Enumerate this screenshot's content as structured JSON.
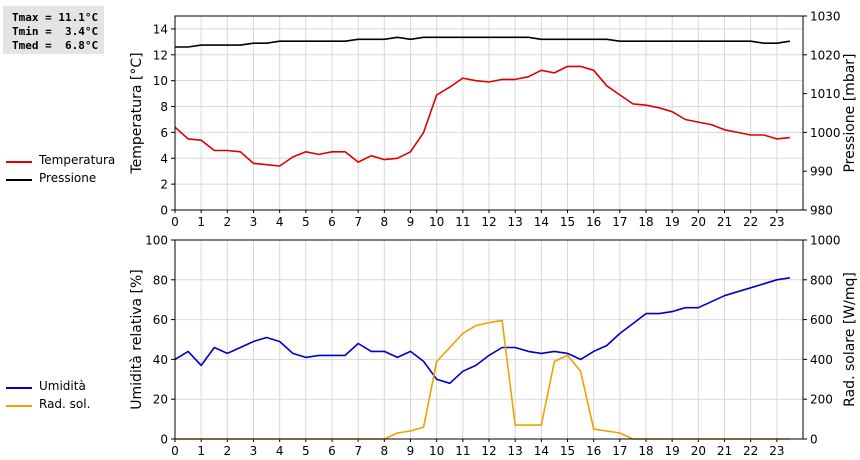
{
  "stats": {
    "tmax": "Tmax = 11.1°C",
    "tmin": "Tmin =  3.4°C",
    "tmed": "Tmed =  6.8°C"
  },
  "colors": {
    "temperature": "#dd0000",
    "pressure": "#000000",
    "humidity": "#0000cc",
    "solar": "#f0a000",
    "grid": "#d8d8d8"
  },
  "chart_data": [
    {
      "type": "line",
      "xlim": [
        0,
        24
      ],
      "x_ticks": [
        "0",
        "1",
        "2",
        "3",
        "4",
        "5",
        "6",
        "7",
        "8",
        "9",
        "10",
        "11",
        "12",
        "13",
        "14",
        "15",
        "16",
        "17",
        "18",
        "19",
        "20",
        "21",
        "22",
        "23"
      ],
      "grid": true,
      "legend_position": "left",
      "left_axis": {
        "label": "Temperatura [°C]",
        "ylim": [
          0,
          15
        ],
        "ticks": [
          0,
          2,
          4,
          6,
          8,
          10,
          12,
          14
        ]
      },
      "right_axis": {
        "label": "Pressione [mbar]",
        "ylim": [
          980,
          1030
        ],
        "ticks": [
          980,
          990,
          1000,
          1010,
          1020,
          1030
        ]
      },
      "series": [
        {
          "name": "Temperatura",
          "axis": "left",
          "color": "#dd0000",
          "points": [
            [
              0,
              6.4
            ],
            [
              0.5,
              5.5
            ],
            [
              1,
              5.4
            ],
            [
              1.5,
              4.6
            ],
            [
              2,
              4.6
            ],
            [
              2.5,
              4.5
            ],
            [
              3,
              3.6
            ],
            [
              3.5,
              3.5
            ],
            [
              4,
              3.4
            ],
            [
              4.5,
              4.1
            ],
            [
              5,
              4.5
            ],
            [
              5.5,
              4.3
            ],
            [
              6,
              4.5
            ],
            [
              6.5,
              4.5
            ],
            [
              7,
              3.7
            ],
            [
              7.5,
              4.2
            ],
            [
              8,
              3.9
            ],
            [
              8.5,
              4.0
            ],
            [
              9,
              4.5
            ],
            [
              9.5,
              6.0
            ],
            [
              10,
              8.9
            ],
            [
              10.5,
              9.5
            ],
            [
              11,
              10.2
            ],
            [
              11.5,
              10.0
            ],
            [
              12,
              9.9
            ],
            [
              12.5,
              10.1
            ],
            [
              13,
              10.1
            ],
            [
              13.5,
              10.3
            ],
            [
              14,
              10.8
            ],
            [
              14.5,
              10.6
            ],
            [
              15,
              11.1
            ],
            [
              15.5,
              11.1
            ],
            [
              16,
              10.8
            ],
            [
              16.5,
              9.6
            ],
            [
              17,
              8.9
            ],
            [
              17.5,
              8.2
            ],
            [
              18,
              8.1
            ],
            [
              18.5,
              7.9
            ],
            [
              19,
              7.6
            ],
            [
              19.5,
              7.0
            ],
            [
              20,
              6.8
            ],
            [
              20.5,
              6.6
            ],
            [
              21,
              6.2
            ],
            [
              21.5,
              6.0
            ],
            [
              22,
              5.8
            ],
            [
              22.5,
              5.8
            ],
            [
              23,
              5.5
            ],
            [
              23.5,
              5.6
            ]
          ]
        },
        {
          "name": "Pressione",
          "axis": "right",
          "color": "#000000",
          "points": [
            [
              0,
              1022
            ],
            [
              0.5,
              1022
            ],
            [
              1,
              1022.5
            ],
            [
              1.5,
              1022.5
            ],
            [
              2,
              1022.5
            ],
            [
              2.5,
              1022.5
            ],
            [
              3,
              1023
            ],
            [
              3.5,
              1023
            ],
            [
              4,
              1023.5
            ],
            [
              4.5,
              1023.5
            ],
            [
              5,
              1023.5
            ],
            [
              5.5,
              1023.5
            ],
            [
              6,
              1023.5
            ],
            [
              6.5,
              1023.5
            ],
            [
              7,
              1024
            ],
            [
              7.5,
              1024
            ],
            [
              8,
              1024
            ],
            [
              8.5,
              1024.5
            ],
            [
              9,
              1024
            ],
            [
              9.5,
              1024.5
            ],
            [
              10,
              1024.5
            ],
            [
              10.5,
              1024.5
            ],
            [
              11,
              1024.5
            ],
            [
              11.5,
              1024.5
            ],
            [
              12,
              1024.5
            ],
            [
              12.5,
              1024.5
            ],
            [
              13,
              1024.5
            ],
            [
              13.5,
              1024.5
            ],
            [
              14,
              1024
            ],
            [
              14.5,
              1024
            ],
            [
              15,
              1024
            ],
            [
              15.5,
              1024
            ],
            [
              16,
              1024
            ],
            [
              16.5,
              1024
            ],
            [
              17,
              1023.5
            ],
            [
              17.5,
              1023.5
            ],
            [
              18,
              1023.5
            ],
            [
              18.5,
              1023.5
            ],
            [
              19,
              1023.5
            ],
            [
              19.5,
              1023.5
            ],
            [
              20,
              1023.5
            ],
            [
              20.5,
              1023.5
            ],
            [
              21,
              1023.5
            ],
            [
              21.5,
              1023.5
            ],
            [
              22,
              1023.5
            ],
            [
              22.5,
              1023
            ],
            [
              23,
              1023
            ],
            [
              23.5,
              1023.5
            ]
          ]
        }
      ]
    },
    {
      "type": "line",
      "xlim": [
        0,
        24
      ],
      "x_ticks": [
        "0",
        "1",
        "2",
        "3",
        "4",
        "5",
        "6",
        "7",
        "8",
        "9",
        "10",
        "11",
        "12",
        "13",
        "14",
        "15",
        "16",
        "17",
        "18",
        "19",
        "20",
        "21",
        "22",
        "23"
      ],
      "grid": true,
      "legend_position": "left",
      "left_axis": {
        "label": "Umidità relativa [%]",
        "ylim": [
          0,
          100
        ],
        "ticks": [
          0,
          20,
          40,
          60,
          80,
          100
        ]
      },
      "right_axis": {
        "label": "Rad. solare [W/mq]",
        "ylim": [
          0,
          1000
        ],
        "ticks": [
          0,
          200,
          400,
          600,
          800,
          1000
        ]
      },
      "series": [
        {
          "name": "Umidità",
          "axis": "left",
          "color": "#0000cc",
          "points": [
            [
              0,
              40
            ],
            [
              0.5,
              44
            ],
            [
              1,
              37
            ],
            [
              1.5,
              46
            ],
            [
              2,
              43
            ],
            [
              2.5,
              46
            ],
            [
              3,
              49
            ],
            [
              3.5,
              51
            ],
            [
              4,
              49
            ],
            [
              4.5,
              43
            ],
            [
              5,
              41
            ],
            [
              5.5,
              42
            ],
            [
              6,
              42
            ],
            [
              6.5,
              42
            ],
            [
              7,
              48
            ],
            [
              7.5,
              44
            ],
            [
              8,
              44
            ],
            [
              8.5,
              41
            ],
            [
              9,
              44
            ],
            [
              9.5,
              39
            ],
            [
              10,
              30
            ],
            [
              10.5,
              28
            ],
            [
              11,
              34
            ],
            [
              11.5,
              37
            ],
            [
              12,
              42
            ],
            [
              12.5,
              46
            ],
            [
              13,
              46
            ],
            [
              13.5,
              44
            ],
            [
              14,
              43
            ],
            [
              14.5,
              44
            ],
            [
              15,
              43
            ],
            [
              15.5,
              40
            ],
            [
              16,
              44
            ],
            [
              16.5,
              47
            ],
            [
              17,
              53
            ],
            [
              17.5,
              58
            ],
            [
              18,
              63
            ],
            [
              18.5,
              63
            ],
            [
              19,
              64
            ],
            [
              19.5,
              66
            ],
            [
              20,
              66
            ],
            [
              20.5,
              69
            ],
            [
              21,
              72
            ],
            [
              21.5,
              74
            ],
            [
              22,
              76
            ],
            [
              22.5,
              78
            ],
            [
              23,
              80
            ],
            [
              23.5,
              81
            ]
          ]
        },
        {
          "name": "Rad. sol.",
          "axis": "right",
          "color": "#f0a000",
          "points": [
            [
              0,
              0
            ],
            [
              0.5,
              0
            ],
            [
              1,
              0
            ],
            [
              1.5,
              0
            ],
            [
              2,
              0
            ],
            [
              2.5,
              0
            ],
            [
              3,
              0
            ],
            [
              3.5,
              0
            ],
            [
              4,
              0
            ],
            [
              4.5,
              0
            ],
            [
              5,
              0
            ],
            [
              5.5,
              0
            ],
            [
              6,
              0
            ],
            [
              6.5,
              0
            ],
            [
              7,
              0
            ],
            [
              7.5,
              0
            ],
            [
              8,
              0
            ],
            [
              8.5,
              30
            ],
            [
              9,
              40
            ],
            [
              9.5,
              60
            ],
            [
              10,
              390
            ],
            [
              10.5,
              460
            ],
            [
              11,
              530
            ],
            [
              11.5,
              570
            ],
            [
              12,
              585
            ],
            [
              12.5,
              595
            ],
            [
              13,
              70
            ],
            [
              13.5,
              70
            ],
            [
              14,
              70
            ],
            [
              14.5,
              390
            ],
            [
              15,
              420
            ],
            [
              15.5,
              340
            ],
            [
              16,
              50
            ],
            [
              16.5,
              40
            ],
            [
              17,
              30
            ],
            [
              17.5,
              0
            ],
            [
              18,
              0
            ],
            [
              18.5,
              0
            ],
            [
              19,
              0
            ],
            [
              19.5,
              0
            ],
            [
              20,
              0
            ],
            [
              20.5,
              0
            ],
            [
              21,
              0
            ],
            [
              21.5,
              0
            ],
            [
              22,
              0
            ],
            [
              22.5,
              0
            ],
            [
              23,
              0
            ],
            [
              23.5,
              0
            ]
          ]
        }
      ]
    }
  ]
}
